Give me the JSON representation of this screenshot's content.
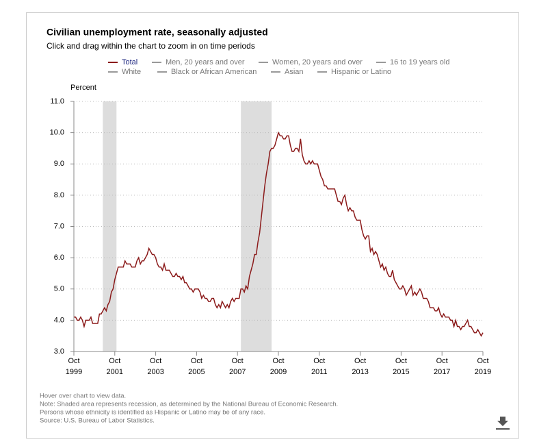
{
  "chart_data": {
    "type": "line",
    "title": "Civilian unemployment rate, seasonally adjusted",
    "subtitle": "Click and drag within the chart to zoom in on time periods",
    "y_label": "Percent",
    "series": [
      {
        "name": "Total",
        "color": "#8b1a1a",
        "values": [
          4.1,
          4.1,
          4.0,
          4.0,
          4.1,
          4.0,
          3.8,
          4.0,
          4.0,
          4.0,
          4.1,
          3.9,
          3.9,
          3.9,
          3.9,
          4.2,
          4.2,
          4.3,
          4.4,
          4.3,
          4.5,
          4.6,
          4.9,
          5.0,
          5.3,
          5.5,
          5.7,
          5.7,
          5.7,
          5.7,
          5.9,
          5.8,
          5.8,
          5.8,
          5.7,
          5.7,
          5.7,
          5.9,
          6.0,
          5.8,
          5.9,
          5.9,
          6.0,
          6.1,
          6.3,
          6.2,
          6.1,
          6.1,
          6.0,
          5.8,
          5.7,
          5.7,
          5.6,
          5.8,
          5.6,
          5.6,
          5.6,
          5.5,
          5.4,
          5.4,
          5.5,
          5.4,
          5.4,
          5.3,
          5.4,
          5.2,
          5.2,
          5.1,
          5.0,
          5.0,
          4.9,
          5.0,
          5.0,
          5.0,
          4.9,
          4.7,
          4.8,
          4.7,
          4.7,
          4.6,
          4.6,
          4.7,
          4.7,
          4.5,
          4.4,
          4.5,
          4.4,
          4.6,
          4.5,
          4.4,
          4.5,
          4.4,
          4.6,
          4.7,
          4.6,
          4.7,
          4.7,
          4.7,
          5.0,
          5.0,
          4.9,
          5.1,
          5.0,
          5.4,
          5.6,
          5.8,
          6.1,
          6.1,
          6.5,
          6.8,
          7.3,
          7.8,
          8.3,
          8.7,
          9.0,
          9.4,
          9.5,
          9.5,
          9.6,
          9.8,
          10.0,
          9.9,
          9.9,
          9.8,
          9.8,
          9.9,
          9.9,
          9.6,
          9.4,
          9.4,
          9.5,
          9.5,
          9.4,
          9.8,
          9.3,
          9.1,
          9.0,
          9.0,
          9.1,
          9.0,
          9.1,
          9.0,
          9.0,
          9.0,
          8.8,
          8.6,
          8.5,
          8.3,
          8.3,
          8.2,
          8.2,
          8.2,
          8.2,
          8.2,
          8.0,
          7.8,
          7.8,
          7.7,
          7.9,
          8.0,
          7.7,
          7.5,
          7.6,
          7.5,
          7.5,
          7.3,
          7.2,
          7.2,
          7.2,
          6.9,
          6.7,
          6.6,
          6.7,
          6.7,
          6.2,
          6.3,
          6.1,
          6.2,
          6.1,
          5.9,
          5.7,
          5.8,
          5.6,
          5.7,
          5.5,
          5.4,
          5.4,
          5.6,
          5.3,
          5.2,
          5.1,
          5.0,
          5.0,
          5.1,
          5.0,
          4.8,
          4.9,
          5.0,
          5.1,
          4.8,
          4.9,
          4.8,
          4.9,
          5.0,
          4.9,
          4.7,
          4.7,
          4.7,
          4.6,
          4.4,
          4.4,
          4.4,
          4.3,
          4.3,
          4.4,
          4.2,
          4.1,
          4.2,
          4.1,
          4.1,
          4.1,
          4.0,
          4.0,
          3.8,
          4.0,
          3.8,
          3.8,
          3.7,
          3.8,
          3.8,
          3.9,
          4.0,
          3.8,
          3.8,
          3.7,
          3.6,
          3.6,
          3.7,
          3.6,
          3.5,
          3.6
        ]
      }
    ],
    "inactive_series": [
      "Men, 20 years and over",
      "Women, 20 years and over",
      "16 to 19 years old",
      "White",
      "Black or African American",
      "Asian",
      "Hispanic or Latino"
    ],
    "x": [
      "1999-10",
      "1999-11",
      "1999-12",
      "2000-01",
      "2000-02",
      "2000-03",
      "2000-04",
      "2000-05",
      "2000-06",
      "2000-07",
      "2000-08",
      "2000-09",
      "2000-10",
      "2000-11",
      "2000-12",
      "2001-01",
      "2001-02",
      "2001-03",
      "2001-04",
      "2001-05",
      "2001-06",
      "2001-07",
      "2001-08",
      "2001-09",
      "2001-10",
      "2001-11",
      "2001-12",
      "2002-01",
      "2002-02",
      "2002-03",
      "2002-04",
      "2002-05",
      "2002-06",
      "2002-07",
      "2002-08",
      "2002-09",
      "2002-10",
      "2002-11",
      "2002-12",
      "2003-01",
      "2003-02",
      "2003-03",
      "2003-04",
      "2003-05",
      "2003-06",
      "2003-07",
      "2003-08",
      "2003-09",
      "2003-10",
      "2003-11",
      "2003-12",
      "2004-01",
      "2004-02",
      "2004-03",
      "2004-04",
      "2004-05",
      "2004-06",
      "2004-07",
      "2004-08",
      "2004-09",
      "2004-10",
      "2004-11",
      "2004-12",
      "2005-01",
      "2005-02",
      "2005-03",
      "2005-04",
      "2005-05",
      "2005-06",
      "2005-07",
      "2005-08",
      "2005-09",
      "2005-10",
      "2005-11",
      "2005-12",
      "2006-01",
      "2006-02",
      "2006-03",
      "2006-04",
      "2006-05",
      "2006-06",
      "2006-07",
      "2006-08",
      "2006-09",
      "2006-10",
      "2006-11",
      "2006-12",
      "2007-01",
      "2007-02",
      "2007-03",
      "2007-04",
      "2007-05",
      "2007-06",
      "2007-07",
      "2007-08",
      "2007-09",
      "2007-10",
      "2007-11",
      "2007-12",
      "2008-01",
      "2008-02",
      "2008-03",
      "2008-04",
      "2008-05",
      "2008-06",
      "2008-07",
      "2008-08",
      "2008-09",
      "2008-10",
      "2008-11",
      "2008-12",
      "2009-01",
      "2009-02",
      "2009-03",
      "2009-04",
      "2009-05",
      "2009-06",
      "2009-07",
      "2009-08",
      "2009-09",
      "2009-10",
      "2009-11",
      "2009-12",
      "2010-01",
      "2010-02",
      "2010-03",
      "2010-04",
      "2010-05",
      "2010-06",
      "2010-07",
      "2010-08",
      "2010-09",
      "2010-10",
      "2010-11",
      "2010-12",
      "2011-01",
      "2011-02",
      "2011-03",
      "2011-04",
      "2011-05",
      "2011-06",
      "2011-07",
      "2011-08",
      "2011-09",
      "2011-10",
      "2011-11",
      "2011-12",
      "2012-01",
      "2012-02",
      "2012-03",
      "2012-04",
      "2012-05",
      "2012-06",
      "2012-07",
      "2012-08",
      "2012-09",
      "2012-10",
      "2012-11",
      "2012-12",
      "2013-01",
      "2013-02",
      "2013-03",
      "2013-04",
      "2013-05",
      "2013-06",
      "2013-07",
      "2013-08",
      "2013-09",
      "2013-10",
      "2013-11",
      "2013-12",
      "2014-01",
      "2014-02",
      "2014-03",
      "2014-04",
      "2014-05",
      "2014-06",
      "2014-07",
      "2014-08",
      "2014-09",
      "2014-10",
      "2014-11",
      "2014-12",
      "2015-01",
      "2015-02",
      "2015-03",
      "2015-04",
      "2015-05",
      "2015-06",
      "2015-07",
      "2015-08",
      "2015-09",
      "2015-10",
      "2015-11",
      "2015-12",
      "2016-01",
      "2016-02",
      "2016-03",
      "2016-04",
      "2016-05",
      "2016-06",
      "2016-07",
      "2016-08",
      "2016-09",
      "2016-10",
      "2016-11",
      "2016-12",
      "2017-01",
      "2017-02",
      "2017-03",
      "2017-04",
      "2017-05",
      "2017-06",
      "2017-07",
      "2017-08",
      "2017-09",
      "2017-10",
      "2017-11",
      "2017-12",
      "2018-01",
      "2018-02",
      "2018-03",
      "2018-04",
      "2018-05",
      "2018-06",
      "2018-07",
      "2018-08",
      "2018-09",
      "2018-10",
      "2018-11",
      "2018-12",
      "2019-01",
      "2019-02",
      "2019-03",
      "2019-04",
      "2019-05",
      "2019-06",
      "2019-07",
      "2019-08",
      "2019-09",
      "2019-10"
    ],
    "xlim": [
      "1999-10",
      "2019-10"
    ],
    "xticks": [
      {
        "value": "1999-10",
        "label": "Oct 1999"
      },
      {
        "value": "2001-10",
        "label": "Oct 2001"
      },
      {
        "value": "2003-10",
        "label": "Oct 2003"
      },
      {
        "value": "2005-10",
        "label": "Oct 2005"
      },
      {
        "value": "2007-10",
        "label": "Oct 2007"
      },
      {
        "value": "2009-10",
        "label": "Oct 2009"
      },
      {
        "value": "2011-10",
        "label": "Oct 2011"
      },
      {
        "value": "2013-10",
        "label": "Oct 2013"
      },
      {
        "value": "2015-10",
        "label": "Oct 2015"
      },
      {
        "value": "2017-10",
        "label": "Oct 2017"
      },
      {
        "value": "2019-10",
        "label": "Oct 2019"
      }
    ],
    "ylim": [
      3,
      11
    ],
    "yticks": [
      {
        "value": 3,
        "label": "3.0"
      },
      {
        "value": 4,
        "label": "4.0"
      },
      {
        "value": 5,
        "label": "5.0"
      },
      {
        "value": 6,
        "label": "6.0"
      },
      {
        "value": 7,
        "label": "7.0"
      },
      {
        "value": 8,
        "label": "8.0"
      },
      {
        "value": 9,
        "label": "9.0"
      },
      {
        "value": 10,
        "label": "10.0"
      },
      {
        "value": 11,
        "label": "11.0"
      }
    ],
    "grid": true,
    "recessions": [
      {
        "start": "2001-03",
        "end": "2001-11"
      },
      {
        "start": "2007-12",
        "end": "2009-06"
      }
    ],
    "notes": [
      "Hover over chart to view data.",
      "Note: Shaded area represents recession, as determined by the National Bureau of Economic Research.",
      "Persons whose ethnicity is identified as Hispanic or Latino may be of any race.",
      "Source: U.S. Bureau of Labor Statistics."
    ]
  }
}
